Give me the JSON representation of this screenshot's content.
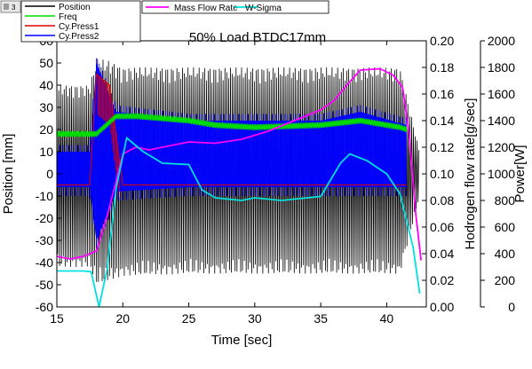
{
  "window": {
    "layer_badge": "3"
  },
  "chart_data": {
    "type": "line",
    "title": "50% Load BTDC17mm",
    "xlabel": "Time [sec]",
    "ylabel_left": "Position [mm]",
    "ylabel_right1": "Hodrogen flow rate[g/sec]",
    "ylabel_right2": "Power[W]",
    "xlim": [
      15,
      43
    ],
    "ylim_left": [
      -60,
      60
    ],
    "ylim_right1": [
      0,
      0.2
    ],
    "ylim_right2": [
      0,
      2000
    ],
    "x_ticks": [
      "15",
      "20",
      "25",
      "30",
      "35",
      "40"
    ],
    "y_left_ticks": [
      "60",
      "50",
      "40",
      "30",
      "20",
      "10",
      "0",
      "-10",
      "-20",
      "-30",
      "-40",
      "-50",
      "-60"
    ],
    "y_right1_ticks": [
      "0.20",
      "0.18",
      "0.16",
      "0.14",
      "0.12",
      "0.10",
      "0.08",
      "0.06",
      "0.04",
      "0.02",
      "0.00"
    ],
    "y_right2_ticks": [
      "2000",
      "1800",
      "1600",
      "1400",
      "1200",
      "1000",
      "800",
      "600",
      "400",
      "200",
      "0"
    ],
    "legend": [
      {
        "name": "Position",
        "color": "#000000"
      },
      {
        "name": "Freq",
        "color": "#00dd00"
      },
      {
        "name": "Cy.Press1",
        "color": "#dd0000"
      },
      {
        "name": "Cy.Press2",
        "color": "#0000ff"
      },
      {
        "name": "Mass Flow Rate",
        "color": "#ff00ff"
      },
      {
        "name": "W-Sigma",
        "color": "#00e0e0"
      }
    ],
    "series": [
      {
        "name": "Position",
        "color": "#000000",
        "axis": "left",
        "x_range": [
          15,
          42.5
        ],
        "envelope": [
          {
            "x": 15,
            "min": -42,
            "max": 40
          },
          {
            "x": 17.5,
            "min": -42,
            "max": 40
          },
          {
            "x": 18,
            "min": -50,
            "max": 52
          },
          {
            "x": 19,
            "min": -48,
            "max": 51
          },
          {
            "x": 20,
            "min": -46,
            "max": 48
          },
          {
            "x": 25,
            "min": -45,
            "max": 48
          },
          {
            "x": 30,
            "min": -45,
            "max": 48
          },
          {
            "x": 35,
            "min": -45,
            "max": 48
          },
          {
            "x": 41,
            "min": -45,
            "max": 48
          },
          {
            "x": 42.5,
            "min": -10,
            "max": 10
          }
        ]
      },
      {
        "name": "Freq",
        "color": "#00dd00",
        "axis": "left",
        "points": [
          [
            15,
            18
          ],
          [
            17.5,
            18
          ],
          [
            18,
            18
          ],
          [
            19.5,
            26
          ],
          [
            21,
            26
          ],
          [
            25,
            24
          ],
          [
            27,
            22
          ],
          [
            30,
            21
          ],
          [
            35,
            22
          ],
          [
            38,
            24
          ],
          [
            41,
            21
          ],
          [
            41.5,
            20
          ]
        ]
      },
      {
        "name": "Cy.Press1",
        "color": "#dd0000",
        "axis": "left",
        "points": [
          [
            15,
            -5
          ],
          [
            17.5,
            -5
          ],
          [
            18,
            45
          ],
          [
            19,
            40
          ],
          [
            20,
            -5
          ],
          [
            40,
            -5
          ],
          [
            41.5,
            -5
          ]
        ]
      },
      {
        "name": "Cy.Press2",
        "color": "#0000ff",
        "axis": "left",
        "envelope": [
          {
            "x": 15,
            "min": -6,
            "max": 10
          },
          {
            "x": 17.5,
            "min": -6,
            "max": 10
          },
          {
            "x": 18,
            "min": -30,
            "max": 50
          },
          {
            "x": 19.5,
            "min": -8,
            "max": 28
          },
          {
            "x": 25,
            "min": -6,
            "max": 24
          },
          {
            "x": 30,
            "min": -6,
            "max": 24
          },
          {
            "x": 35,
            "min": -6,
            "max": 24
          },
          {
            "x": 38,
            "min": -6,
            "max": 28
          },
          {
            "x": 41.5,
            "min": -6,
            "max": 22
          }
        ]
      },
      {
        "name": "Mass Flow Rate",
        "color": "#ff00ff",
        "axis": "right1",
        "points": [
          [
            15,
            0.038
          ],
          [
            16,
            0.036
          ],
          [
            17,
            0.038
          ],
          [
            18,
            0.042
          ],
          [
            18.8,
            0.068
          ],
          [
            19.5,
            0.095
          ],
          [
            20,
            0.115
          ],
          [
            21,
            0.12
          ],
          [
            22,
            0.118
          ],
          [
            25,
            0.124
          ],
          [
            27,
            0.123
          ],
          [
            29,
            0.126
          ],
          [
            31,
            0.132
          ],
          [
            33,
            0.14
          ],
          [
            35,
            0.148
          ],
          [
            36,
            0.155
          ],
          [
            37,
            0.167
          ],
          [
            38,
            0.178
          ],
          [
            39.5,
            0.179
          ],
          [
            40.5,
            0.174
          ],
          [
            41.2,
            0.165
          ],
          [
            41.7,
            0.13
          ],
          [
            42.2,
            0.07
          ],
          [
            42.6,
            0.035
          ]
        ]
      },
      {
        "name": "W-Sigma",
        "color": "#00e0e0",
        "axis": "right2",
        "points": [
          [
            15,
            270
          ],
          [
            17,
            270
          ],
          [
            17.6,
            265
          ],
          [
            18.2,
            0
          ],
          [
            18.8,
            280
          ],
          [
            19.5,
            900
          ],
          [
            20.3,
            1270
          ],
          [
            21.5,
            1170
          ],
          [
            23,
            1080
          ],
          [
            25,
            1070
          ],
          [
            26,
            880
          ],
          [
            27,
            820
          ],
          [
            29,
            800
          ],
          [
            30,
            820
          ],
          [
            32,
            800
          ],
          [
            33,
            810
          ],
          [
            35,
            830
          ],
          [
            36.5,
            1080
          ],
          [
            37.2,
            1150
          ],
          [
            38.5,
            1100
          ],
          [
            40,
            1000
          ],
          [
            41,
            850
          ],
          [
            42,
            450
          ],
          [
            42.5,
            100
          ]
        ]
      }
    ]
  }
}
